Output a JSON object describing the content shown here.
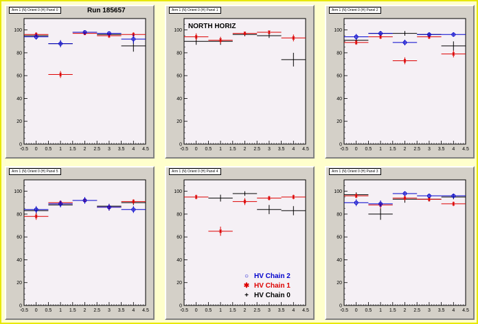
{
  "colors": {
    "chain2": "#0000cc",
    "chain1": "#dd0000",
    "chain0": "#000000",
    "frame": "#f5f0f5",
    "canvas_bg": "#ffffcc"
  },
  "legend": {
    "items": [
      {
        "label": "HV Chain 2",
        "color": "#0000cc",
        "marker": "circle"
      },
      {
        "label": "HV Chain 1",
        "color": "#dd0000",
        "marker": "star"
      },
      {
        "label": "HV Chain 0",
        "color": "#000000",
        "marker": "plus"
      }
    ]
  },
  "chart_data": [
    {
      "type": "scatter",
      "title": "Arm 1 (N) Orient 0 (H) Panel 0",
      "label": "Run 185657",
      "xlim": [
        -0.5,
        4.5
      ],
      "ylim": [
        0,
        110
      ],
      "xticks": [
        "-0.5",
        "0",
        "0.5",
        "1",
        "1.5",
        "2",
        "2.5",
        "3",
        "3.5",
        "4",
        "4.5"
      ],
      "yticks": [
        "0",
        "20",
        "40",
        "60",
        "80",
        "100"
      ],
      "series": [
        {
          "name": "HV Chain 2",
          "x": [
            0,
            1,
            2,
            3,
            4
          ],
          "y": [
            94,
            88,
            98,
            97,
            92
          ],
          "yerr": [
            2.5,
            3,
            1.5,
            1.5,
            4
          ]
        },
        {
          "name": "HV Chain 1",
          "x": [
            0,
            1,
            2,
            3,
            4
          ],
          "y": [
            96,
            61,
            97,
            95,
            96
          ],
          "yerr": [
            2,
            3,
            1.5,
            2,
            2
          ]
        },
        {
          "name": "HV Chain 0",
          "x": [
            0,
            1,
            2,
            3,
            4
          ],
          "y": [
            95,
            88,
            98,
            96,
            86
          ],
          "yerr": [
            1.5,
            3,
            1,
            1.5,
            5
          ]
        }
      ]
    },
    {
      "type": "scatter",
      "title": "Arm 1 (N) Orient 0 (H) Panel 1",
      "label": "NORTH HORIZ",
      "xlim": [
        -0.5,
        4.5
      ],
      "ylim": [
        0,
        110
      ],
      "xticks": [
        "-0.5",
        "0",
        "0.5",
        "1",
        "1.5",
        "2",
        "2.5",
        "3",
        "3.5",
        "4",
        "4.5"
      ],
      "yticks": [
        "0",
        "20",
        "40",
        "60",
        "80",
        "100"
      ],
      "series": [
        {
          "name": "HV Chain 2",
          "x": [],
          "y": [],
          "yerr": []
        },
        {
          "name": "HV Chain 1",
          "x": [
            0,
            1,
            2,
            3,
            4
          ],
          "y": [
            94,
            91,
            97,
            98,
            93
          ],
          "yerr": [
            3,
            3,
            1.5,
            1.5,
            3
          ]
        },
        {
          "name": "HV Chain 0",
          "x": [
            0,
            1,
            2,
            3,
            4
          ],
          "y": [
            90,
            90,
            96,
            95,
            74
          ],
          "yerr": [
            3,
            3,
            1.5,
            2,
            6
          ]
        }
      ]
    },
    {
      "type": "scatter",
      "title": "Arm 1 (N) Orient 0 (H) Panel 2",
      "label": "",
      "xlim": [
        -0.5,
        4.5
      ],
      "ylim": [
        0,
        110
      ],
      "xticks": [
        "-0.5",
        "0",
        "0.5",
        "1",
        "1.5",
        "2",
        "2.5",
        "3",
        "3.5",
        "4",
        "4.5"
      ],
      "yticks": [
        "0",
        "20",
        "40",
        "60",
        "80",
        "100"
      ],
      "series": [
        {
          "name": "HV Chain 2",
          "x": [
            0,
            1,
            2,
            3,
            4
          ],
          "y": [
            94,
            97,
            89,
            96,
            96
          ],
          "yerr": [
            2.5,
            2,
            2.5,
            2,
            2
          ]
        },
        {
          "name": "HV Chain 1",
          "x": [
            0,
            1,
            2,
            3,
            4
          ],
          "y": [
            89,
            94,
            73,
            94,
            79
          ],
          "yerr": [
            2,
            2,
            3,
            2,
            3
          ]
        },
        {
          "name": "HV Chain 0",
          "x": [
            0,
            1,
            2,
            3,
            4
          ],
          "y": [
            91,
            97,
            97,
            96,
            86
          ],
          "yerr": [
            2,
            2,
            2,
            2,
            4
          ]
        }
      ]
    },
    {
      "type": "scatter",
      "title": "Arm 1 (N) Orient 0 (H) Panel 5",
      "label": "",
      "xlim": [
        -0.5,
        4.5
      ],
      "ylim": [
        0,
        110
      ],
      "xticks": [
        "-0.5",
        "0",
        "0.5",
        "1",
        "1.5",
        "2",
        "2.5",
        "3",
        "3.5",
        "4",
        "4.5"
      ],
      "yticks": [
        "0",
        "20",
        "40",
        "60",
        "80",
        "100"
      ],
      "series": [
        {
          "name": "HV Chain 2",
          "x": [
            0,
            1,
            2,
            3,
            4
          ],
          "y": [
            84,
            89,
            92,
            86,
            84
          ],
          "yerr": [
            3,
            3,
            3,
            3,
            3
          ]
        },
        {
          "name": "HV Chain 1",
          "x": [
            0,
            1,
            2,
            3,
            4
          ],
          "y": [
            78,
            90,
            92,
            86,
            91
          ],
          "yerr": [
            3,
            2,
            2,
            3,
            2
          ]
        },
        {
          "name": "HV Chain 0",
          "x": [
            0,
            1,
            2,
            3,
            4
          ],
          "y": [
            83,
            88,
            92,
            87,
            90
          ],
          "yerr": [
            3,
            2,
            2,
            2,
            2
          ]
        }
      ]
    },
    {
      "type": "scatter",
      "title": "Arm 1 (N) Orient 0 (H) Panel 4",
      "label": "",
      "xlim": [
        -0.5,
        4.5
      ],
      "ylim": [
        0,
        110
      ],
      "xticks": [
        "-0.5",
        "0",
        "0.5",
        "1",
        "1.5",
        "2",
        "2.5",
        "3",
        "3.5",
        "4",
        "4.5"
      ],
      "yticks": [
        "0",
        "20",
        "40",
        "60",
        "80",
        "100"
      ],
      "series": [
        {
          "name": "HV Chain 2",
          "x": [],
          "y": [],
          "yerr": []
        },
        {
          "name": "HV Chain 1",
          "x": [
            0,
            1,
            2,
            3,
            4
          ],
          "y": [
            95,
            65,
            91,
            94,
            95
          ],
          "yerr": [
            2,
            4,
            3,
            2,
            2
          ]
        },
        {
          "name": "HV Chain 0",
          "x": [
            1,
            2,
            3,
            4
          ],
          "y": [
            94,
            98,
            84,
            83
          ],
          "yerr": [
            3,
            2,
            4,
            4
          ]
        }
      ]
    },
    {
      "type": "scatter",
      "title": "Arm 1 (N) Orient 0 (H) Panel 3",
      "label": "",
      "xlim": [
        -0.5,
        4.5
      ],
      "ylim": [
        0,
        110
      ],
      "xticks": [
        "-0.5",
        "0",
        "0.5",
        "1",
        "1.5",
        "2",
        "2.5",
        "3",
        "3.5",
        "4",
        "4.5"
      ],
      "yticks": [
        "0",
        "20",
        "40",
        "60",
        "80",
        "100"
      ],
      "series": [
        {
          "name": "HV Chain 2",
          "x": [
            0,
            1,
            2,
            3,
            4
          ],
          "y": [
            90,
            89,
            98,
            96,
            96
          ],
          "yerr": [
            3,
            3,
            2,
            2,
            2
          ]
        },
        {
          "name": "HV Chain 1",
          "x": [
            0,
            1,
            2,
            3,
            4
          ],
          "y": [
            96,
            88,
            94,
            93,
            89
          ],
          "yerr": [
            2,
            3,
            2,
            2,
            2
          ]
        },
        {
          "name": "HV Chain 0",
          "x": [
            0,
            1,
            2,
            3,
            4
          ],
          "y": [
            97,
            80,
            93,
            93,
            95
          ],
          "yerr": [
            2,
            5,
            3,
            2,
            2
          ]
        }
      ]
    }
  ]
}
